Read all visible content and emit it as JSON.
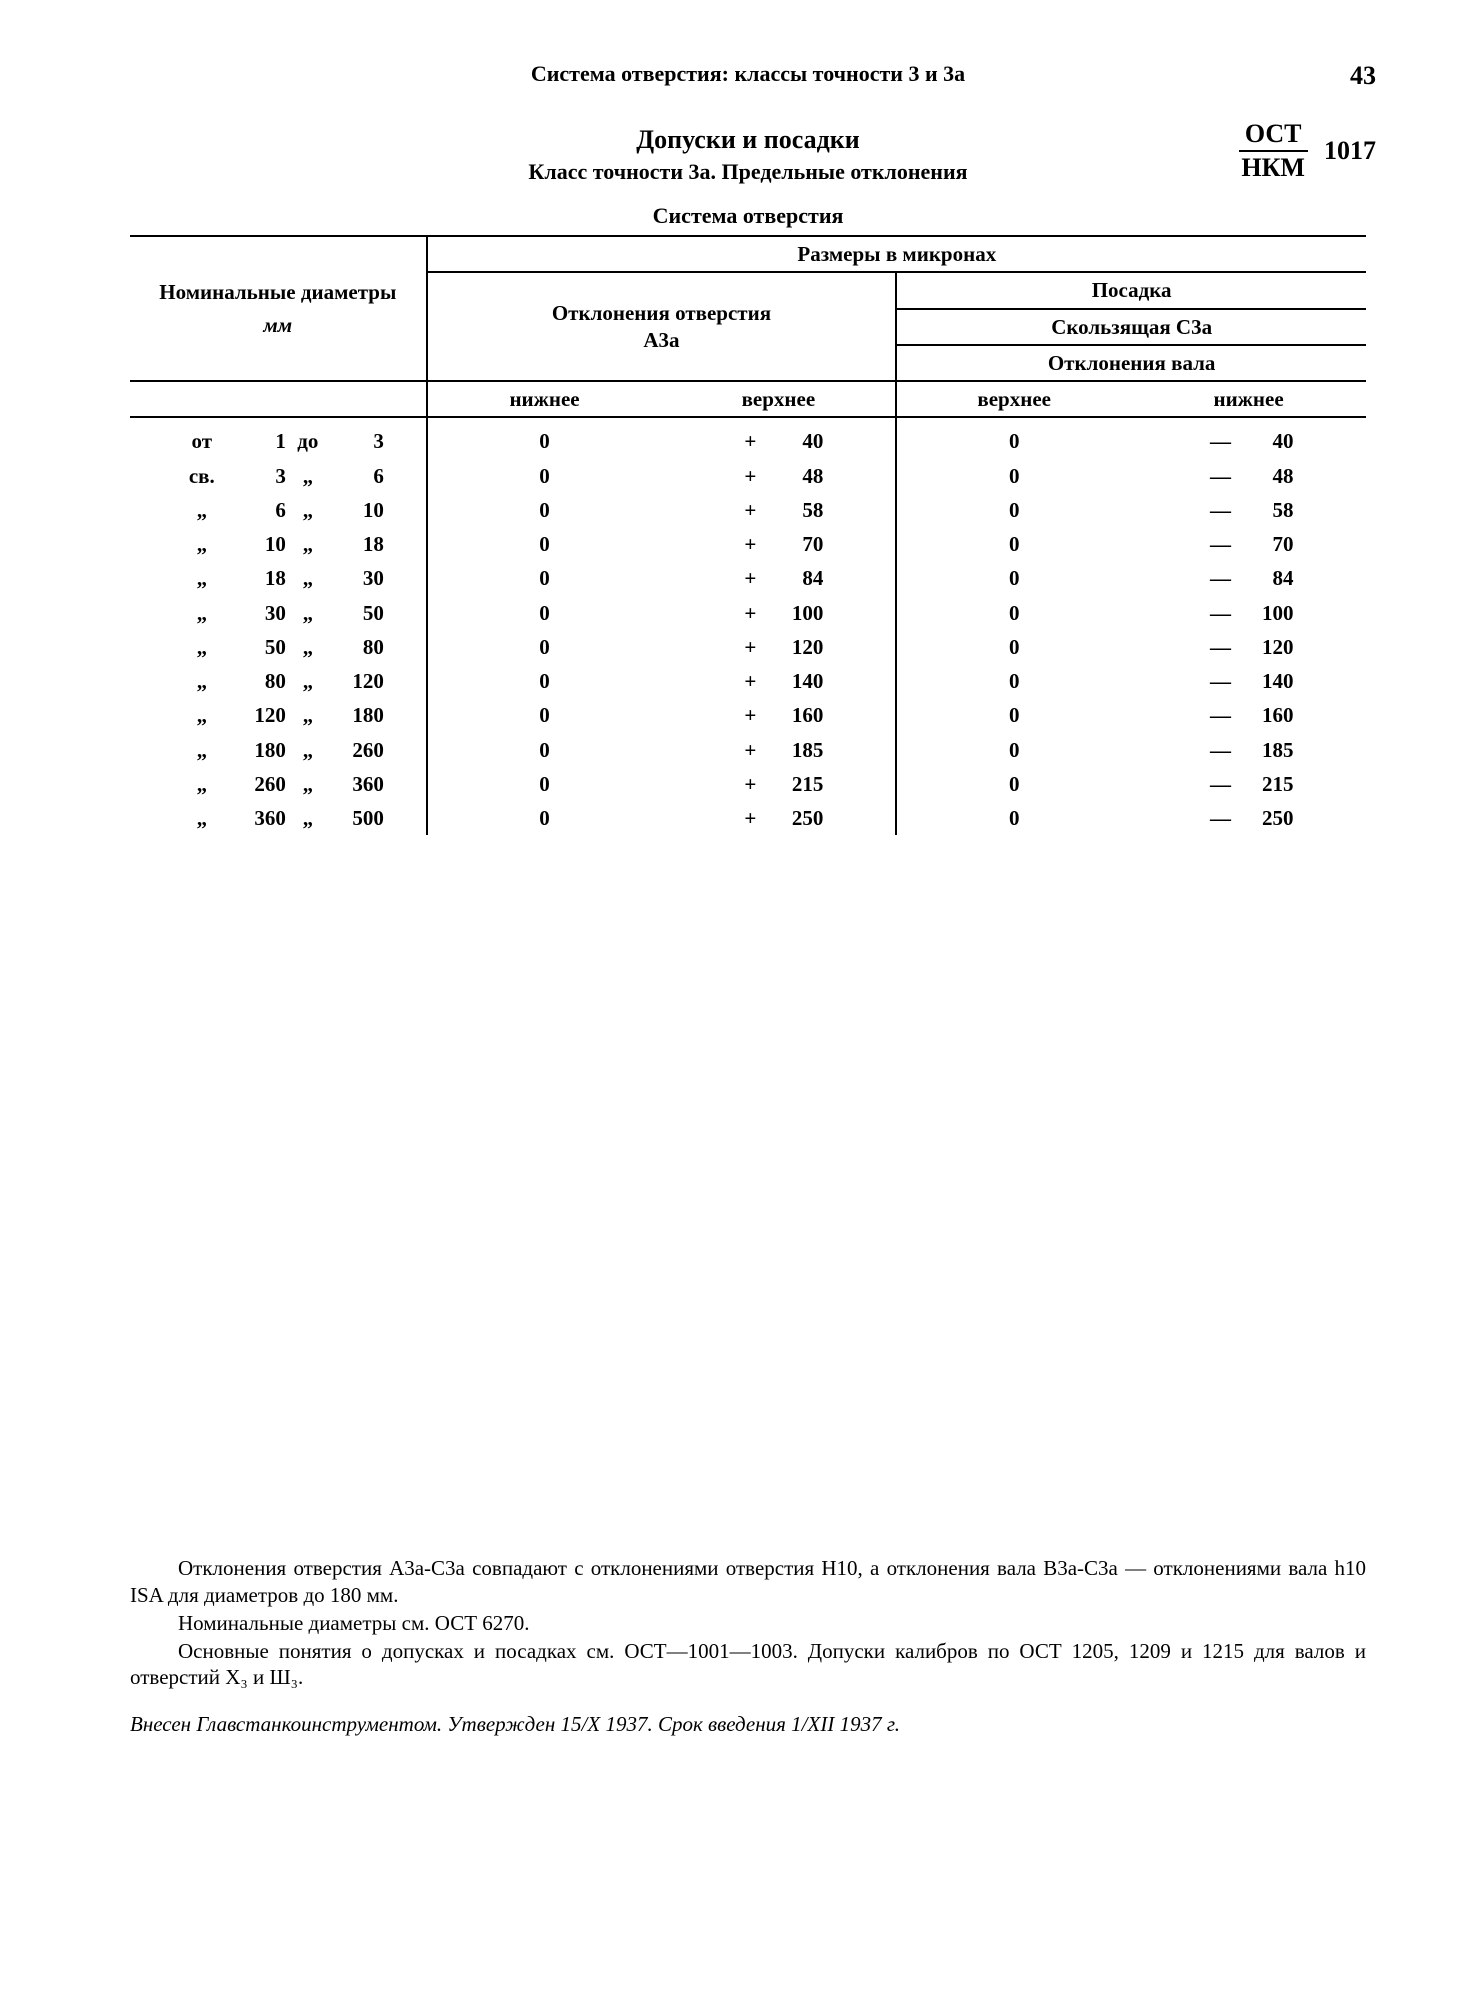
{
  "page_number": "43",
  "running_head": "Система отверстия: классы точности 3 и 3а",
  "title": "Допуски и посадки",
  "subtitle": "Класс точности 3а. Предельные отклонения",
  "standard": {
    "top": "ОСТ",
    "bottom": "НКМ",
    "number": "1017"
  },
  "table_title": "Система отверстия",
  "head": {
    "nominal": "Номинальные диаметры",
    "nominal_unit": "мм",
    "sizes_in_microns": "Размеры в микронах",
    "hole_dev": "Отклонения отверстия",
    "hole_sym": "А3а",
    "fit": "Посадка",
    "fit_name": "Скользящая С3а",
    "shaft_dev": "Отклонения вала",
    "lower": "нижнее",
    "upper": "верхнее"
  },
  "rows": [
    {
      "p": "от",
      "a": "1",
      "w": "до",
      "b": "3",
      "hl": "0",
      "hu": "40",
      "su": "0",
      "sl": "40"
    },
    {
      "p": "св.",
      "a": "3",
      "w": "„",
      "b": "6",
      "hl": "0",
      "hu": "48",
      "su": "0",
      "sl": "48"
    },
    {
      "p": "„",
      "a": "6",
      "w": "„",
      "b": "10",
      "hl": "0",
      "hu": "58",
      "su": "0",
      "sl": "58"
    },
    {
      "p": "„",
      "a": "10",
      "w": "„",
      "b": "18",
      "hl": "0",
      "hu": "70",
      "su": "0",
      "sl": "70"
    },
    {
      "p": "„",
      "a": "18",
      "w": "„",
      "b": "30",
      "hl": "0",
      "hu": "84",
      "su": "0",
      "sl": "84"
    },
    {
      "p": "„",
      "a": "30",
      "w": "„",
      "b": "50",
      "hl": "0",
      "hu": "100",
      "su": "0",
      "sl": "100"
    },
    {
      "p": "„",
      "a": "50",
      "w": "„",
      "b": "80",
      "hl": "0",
      "hu": "120",
      "su": "0",
      "sl": "120"
    },
    {
      "p": "„",
      "a": "80",
      "w": "„",
      "b": "120",
      "hl": "0",
      "hu": "140",
      "su": "0",
      "sl": "140"
    },
    {
      "p": "„",
      "a": "120",
      "w": "„",
      "b": "180",
      "hl": "0",
      "hu": "160",
      "su": "0",
      "sl": "160"
    },
    {
      "p": "„",
      "a": "180",
      "w": "„",
      "b": "260",
      "hl": "0",
      "hu": "185",
      "su": "0",
      "sl": "185"
    },
    {
      "p": "„",
      "a": "260",
      "w": "„",
      "b": "360",
      "hl": "0",
      "hu": "215",
      "su": "0",
      "sl": "215"
    },
    {
      "p": "„",
      "a": "360",
      "w": "„",
      "b": "500",
      "hl": "0",
      "hu": "250",
      "su": "0",
      "sl": "250"
    }
  ],
  "plus": "+",
  "minus": "—",
  "notes": [
    "Отклонения отверстия А3а-С3а совпадают с отклонениями отверстия H10, а отклонения вала В3а-С3а — отклонениями вала h10 ISA для диаметров до 180 мм.",
    "Номинальные диаметры см. ОСТ 6270.",
    "Основные понятия о допусках и посадках см. ОСТ—1001—1003. Допуски ка­либров по ОСТ 1205, 1209 и 1215 для валов и отверстий Х₃ и Ш₃."
  ],
  "imprint": "Внесен Главстанкоинструментом. Утвержден 15/X 1937. Срок введения 1/XII 1937 г."
}
